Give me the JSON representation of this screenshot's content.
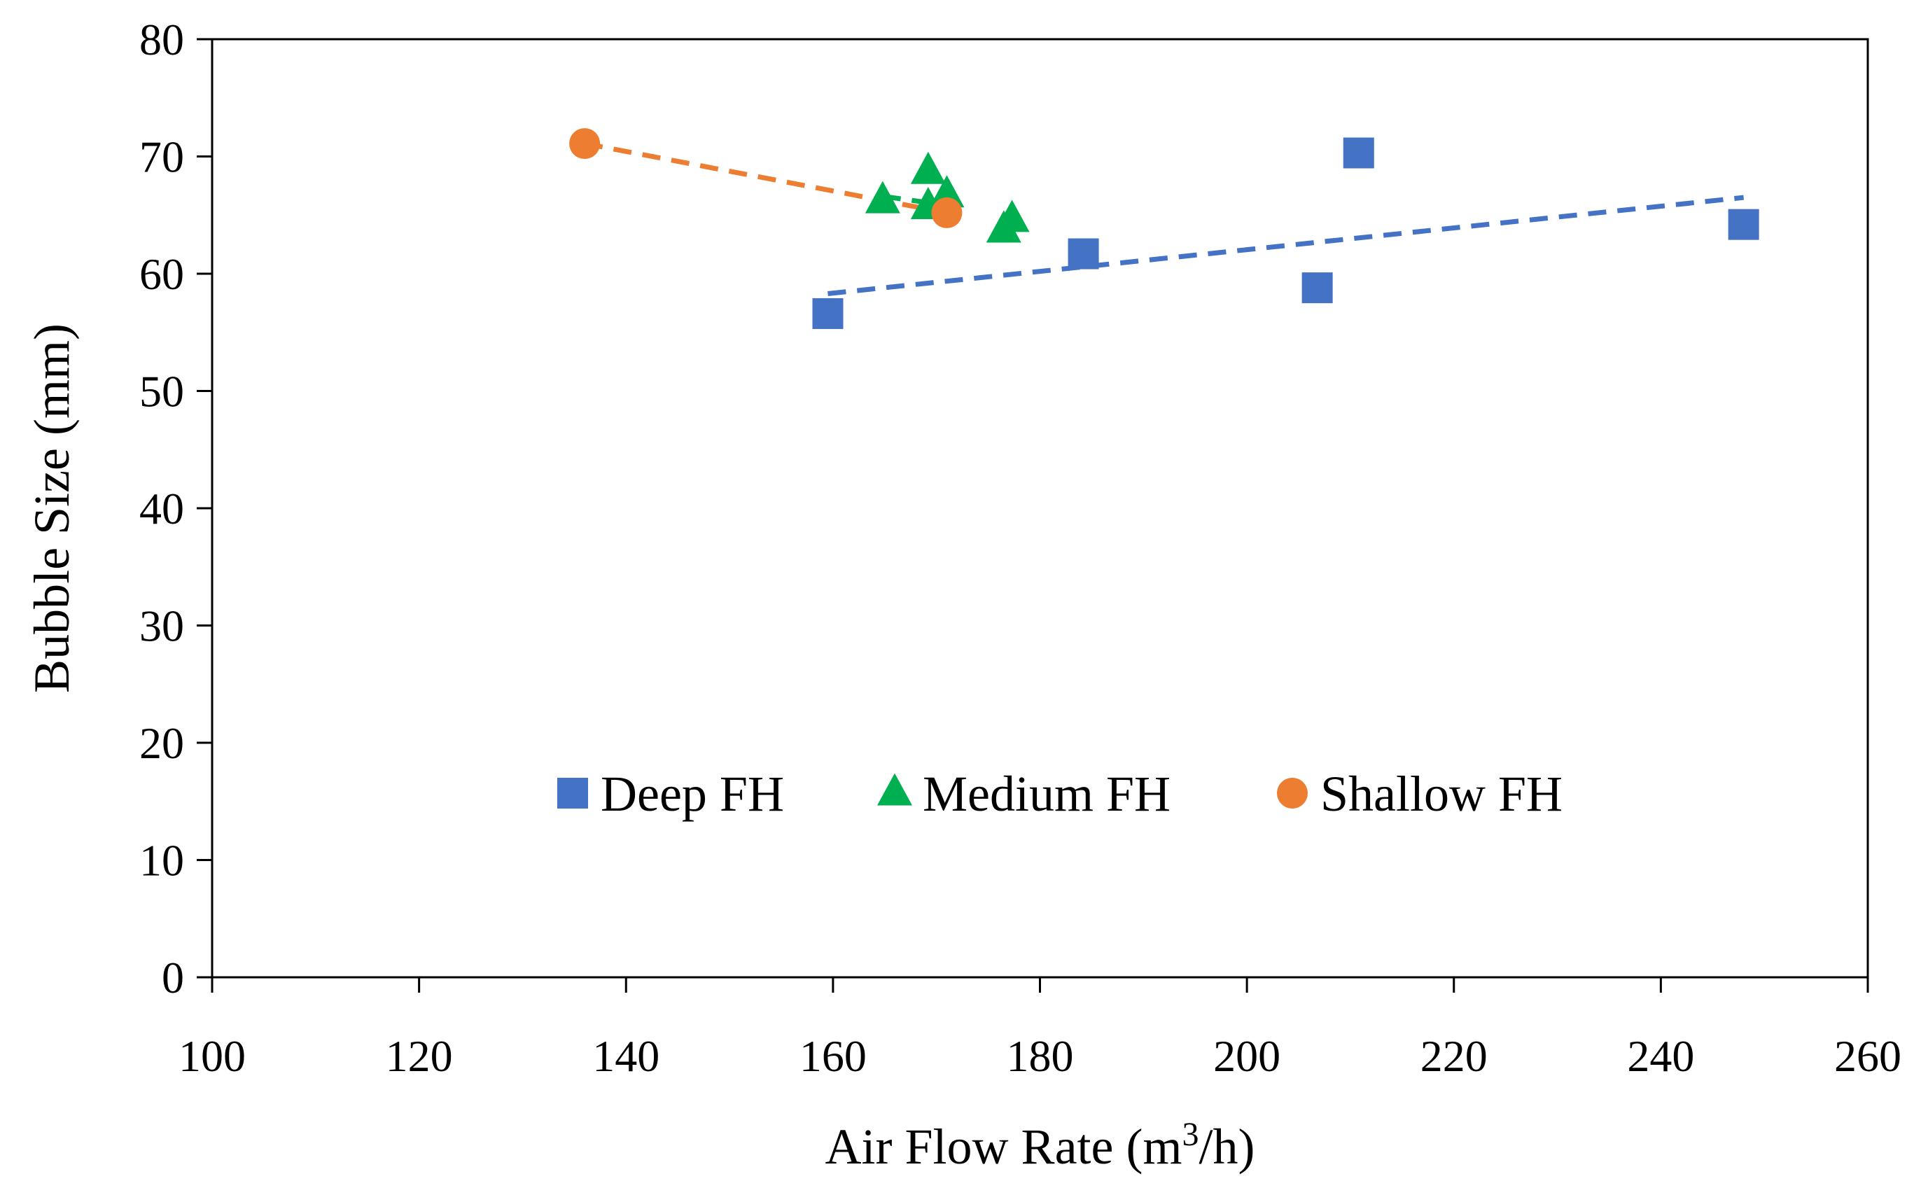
{
  "chart_data": {
    "type": "scatter",
    "title": "",
    "xlabel": "Air Flow Rate (m",
    "xlabel_sup": "3",
    "xlabel_suffix": "/h)",
    "ylabel": "Bubble Size (mm)",
    "xlim": [
      100,
      260
    ],
    "ylim": [
      0,
      80
    ],
    "xticks": [
      100,
      120,
      140,
      160,
      180,
      200,
      220,
      240,
      260
    ],
    "yticks": [
      0,
      10,
      20,
      30,
      40,
      50,
      60,
      70,
      80
    ],
    "grid": false,
    "legend_position": "lower-center",
    "series": [
      {
        "name": "Deep FH",
        "marker": "square",
        "color": "#4472C4",
        "x": [
          159.5,
          184.2,
          206.8,
          210.8,
          248.0
        ],
        "y": [
          56.6,
          61.7,
          58.8,
          70.3,
          64.2
        ],
        "trendline": {
          "x": [
            159.5,
            248.0
          ],
          "y": [
            58.3,
            66.5
          ]
        }
      },
      {
        "name": "Medium FH",
        "marker": "triangle",
        "color": "#00B050",
        "x": [
          164.8,
          169.2,
          169.2,
          171.0,
          176.5,
          177.3
        ],
        "y": [
          66.2,
          68.7,
          65.7,
          66.7,
          63.7,
          64.6
        ],
        "trendline": {
          "x": [
            164.8,
            173.0
          ],
          "y": [
            66.6,
            65.6
          ]
        }
      },
      {
        "name": "Shallow FH",
        "marker": "circle",
        "color": "#ED7D31",
        "x": [
          136.0,
          171.0
        ],
        "y": [
          71.1,
          65.2
        ],
        "trendline": {
          "x": [
            136.0,
            171.0
          ],
          "y": [
            71.1,
            65.2
          ]
        }
      }
    ]
  }
}
